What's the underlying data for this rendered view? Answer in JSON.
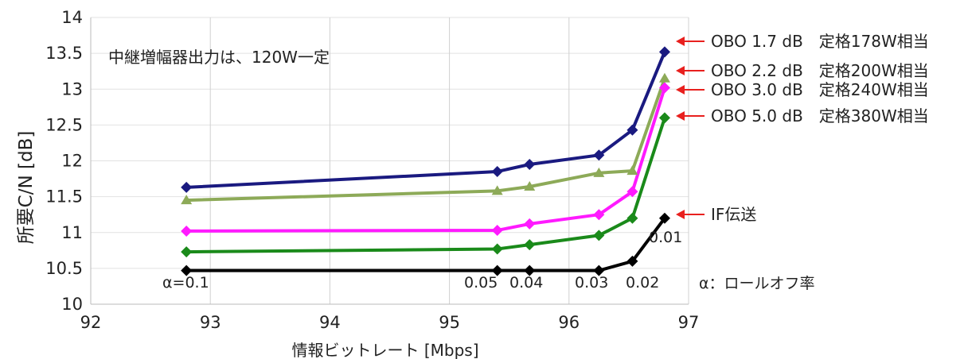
{
  "chart_data": {
    "type": "line",
    "title": "",
    "xlabel": "情報ビットレート [Mbps]",
    "ylabel": "所要C/N [dB]",
    "xlim": [
      92,
      97
    ],
    "ylim": [
      10,
      14
    ],
    "x_ticks": [
      "92",
      "93",
      "94",
      "95",
      "96",
      "97"
    ],
    "y_ticks": [
      "10",
      "10.5",
      "11",
      "11.5",
      "12",
      "12.5",
      "13",
      "13.5",
      "14"
    ],
    "grid": true,
    "note": "中継増幅器出力は、120W一定",
    "rolloff_labels": [
      "α=0.1",
      "0.05",
      "0.04",
      "0.03",
      "0.02",
      "0.01"
    ],
    "rolloff_legend": "α：ロールオフ率",
    "series": [
      {
        "name": "OBO 1.7 dB　定格178W相当",
        "color": "#1a1a80",
        "marker": "diamond",
        "x": [
          92.8,
          95.4,
          95.67,
          96.25,
          96.53,
          96.8
        ],
        "y": [
          11.63,
          11.85,
          11.95,
          12.08,
          12.43,
          13.52
        ]
      },
      {
        "name": "OBO 2.2 dB　定格200W相当",
        "color": "#8daa58",
        "marker": "triangle",
        "x": [
          92.8,
          95.4,
          95.67,
          96.25,
          96.53,
          96.8
        ],
        "y": [
          11.45,
          11.58,
          11.64,
          11.83,
          11.86,
          13.15
        ]
      },
      {
        "name": "OBO 3.0 dB　定格240W相当",
        "color": "#ff1aff",
        "marker": "diamond",
        "x": [
          92.8,
          95.4,
          95.67,
          96.25,
          96.53,
          96.8
        ],
        "y": [
          11.02,
          11.03,
          11.12,
          11.25,
          11.57,
          13.02
        ]
      },
      {
        "name": "OBO 5.0 dB　定格380W相当",
        "color": "#1a8a1a",
        "marker": "diamond",
        "x": [
          92.8,
          95.4,
          95.67,
          96.25,
          96.53,
          96.8
        ],
        "y": [
          10.73,
          10.77,
          10.83,
          10.96,
          11.2,
          12.6
        ]
      },
      {
        "name": "IF伝送",
        "color": "#000000",
        "marker": "diamond",
        "x": [
          92.8,
          95.4,
          95.67,
          96.25,
          96.53,
          96.8
        ],
        "y": [
          10.47,
          10.47,
          10.47,
          10.47,
          10.6,
          11.2
        ]
      }
    ]
  },
  "legend": {
    "arrow_color": "#e8201e"
  }
}
